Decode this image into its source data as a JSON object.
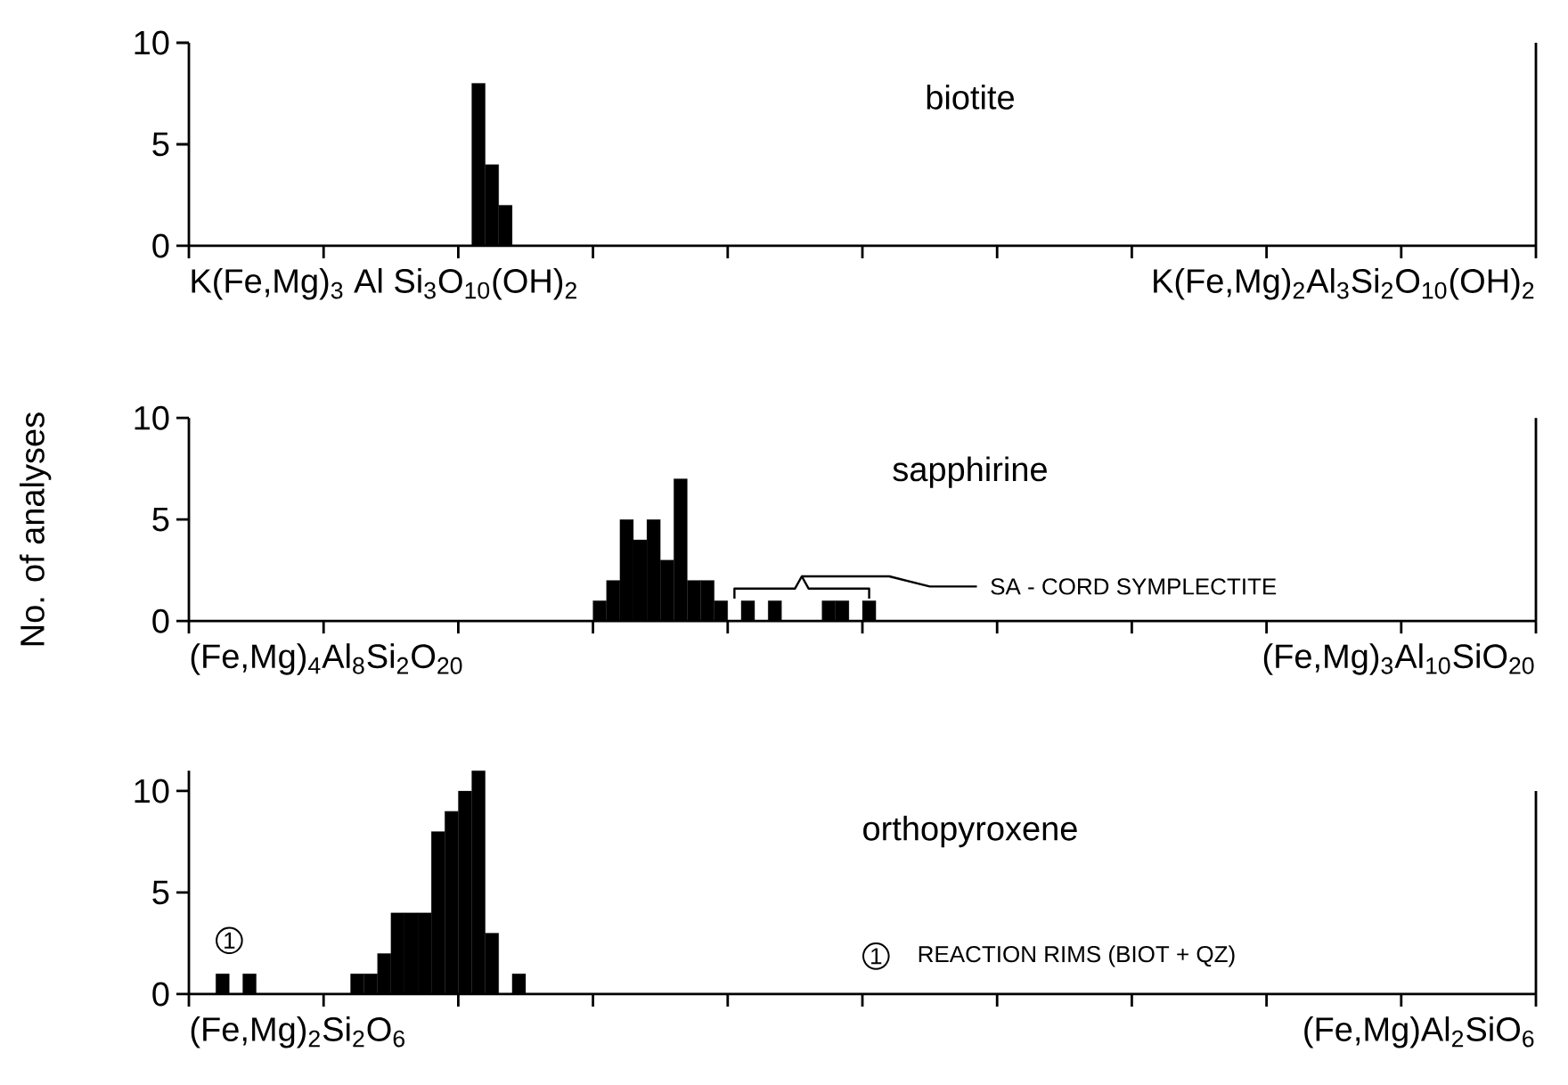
{
  "chart_data": [
    {
      "type": "bar",
      "title": "biotite",
      "color": "#000000",
      "categories": [
        null,
        null,
        null,
        null,
        null,
        null,
        null,
        null,
        null,
        null,
        null,
        null,
        null,
        null,
        null,
        null,
        null,
        null,
        null,
        null,
        null,
        null,
        null,
        null,
        null,
        null,
        null,
        null,
        null,
        null,
        null,
        null,
        null,
        null,
        null,
        null,
        null,
        null,
        null,
        null,
        null,
        null,
        null,
        null,
        null,
        null,
        null,
        null,
        null,
        null,
        null,
        null,
        null,
        null,
        null,
        null,
        null,
        null,
        null,
        null,
        null,
        null,
        null,
        null,
        null,
        null,
        null,
        null,
        null,
        null,
        null,
        null,
        null,
        null,
        null,
        null,
        null,
        null,
        null,
        null,
        null,
        null,
        null,
        null,
        null,
        null,
        null,
        null,
        null,
        null,
        null,
        null,
        null,
        null,
        null,
        null,
        null,
        null,
        null,
        null
      ],
      "values": [
        0,
        0,
        0,
        0,
        0,
        0,
        0,
        0,
        0,
        0,
        0,
        0,
        0,
        0,
        0,
        0,
        0,
        0,
        0,
        0,
        0,
        8,
        4,
        2,
        0,
        0,
        0,
        0,
        0,
        0,
        0,
        0,
        0,
        0,
        0,
        0,
        0,
        0,
        0,
        0,
        0,
        0,
        0,
        0,
        0,
        0,
        0,
        0,
        0,
        0,
        0,
        0,
        0,
        0,
        0,
        0,
        0,
        0,
        0,
        0,
        0,
        0,
        0,
        0,
        0,
        0,
        0,
        0,
        0,
        0,
        0,
        0,
        0,
        0,
        0,
        0,
        0,
        0,
        0,
        0,
        0,
        0,
        0,
        0,
        0,
        0,
        0,
        0,
        0,
        0,
        0,
        0,
        0,
        0,
        0,
        0,
        0,
        0,
        0,
        0
      ],
      "ylim": [
        0,
        10
      ],
      "yticks": [
        0,
        5,
        10
      ],
      "annotations": [
        "K(Fe,Mg)$_{3}$ Al Si$_{3}$O$_{10}$(OH)$_{2}$",
        "K(Fe,Mg)$_{2}$Al$_{3}$Si$_{2}$O$_{10}$(OH)$_{2}$"
      ]
    },
    {
      "type": "bar",
      "title": "sapphirine",
      "ylabel": "No. of analyses",
      "color": "#000000",
      "categories": [
        null,
        null,
        null,
        null,
        null,
        null,
        null,
        null,
        null,
        null,
        null,
        null,
        null,
        null,
        null,
        null,
        null,
        null,
        null,
        null,
        null,
        null,
        null,
        null,
        null,
        null,
        null,
        null,
        null,
        null,
        null,
        null,
        null,
        null,
        null,
        null,
        null,
        null,
        null,
        null,
        null,
        null,
        null,
        null,
        null,
        null,
        null,
        null,
        null,
        null,
        null,
        null,
        null,
        null,
        null,
        null,
        null,
        null,
        null,
        null,
        null,
        null,
        null,
        null,
        null,
        null,
        null,
        null,
        null,
        null,
        null,
        null,
        null,
        null,
        null,
        null,
        null,
        null,
        null,
        null,
        null,
        null,
        null,
        null,
        null,
        null,
        null,
        null,
        null,
        null,
        null,
        null,
        null,
        null,
        null,
        null,
        null,
        null,
        null,
        null
      ],
      "values": [
        0,
        0,
        0,
        0,
        0,
        0,
        0,
        0,
        0,
        0,
        0,
        0,
        0,
        0,
        0,
        0,
        0,
        0,
        0,
        0,
        0,
        0,
        0,
        0,
        0,
        0,
        0,
        0,
        0,
        0,
        1,
        2,
        5,
        4,
        5,
        3,
        7,
        2,
        2,
        1,
        0,
        1,
        0,
        1,
        0,
        0,
        0,
        1,
        1,
        0,
        1,
        0,
        0,
        0,
        0,
        0,
        0,
        0,
        0,
        0,
        0,
        0,
        0,
        0,
        0,
        0,
        0,
        0,
        0,
        0,
        0,
        0,
        0,
        0,
        0,
        0,
        0,
        0,
        0,
        0,
        0,
        0,
        0,
        0,
        0,
        0,
        0,
        0,
        0,
        0,
        0,
        0,
        0,
        0,
        0,
        0,
        0,
        0,
        0,
        0
      ],
      "ylim": [
        0,
        10
      ],
      "yticks": [
        0,
        5,
        10
      ],
      "annotations": [
        "(Fe,Mg)$_{4}$Al$_{8}$Si$_{2}$O$_{20}$",
        "(Fe,Mg)$_{3}$Al$_{10}$SiO$_{20}$",
        "SA - CORD SYMPLECTITE"
      ]
    },
    {
      "type": "bar",
      "title": "orthopyroxene",
      "color": "#000000",
      "categories": [
        null,
        null,
        null,
        null,
        null,
        null,
        null,
        null,
        null,
        null,
        null,
        null,
        null,
        null,
        null,
        null,
        null,
        null,
        null,
        null,
        null,
        null,
        null,
        null,
        null,
        null,
        null,
        null,
        null,
        null,
        null,
        null,
        null,
        null,
        null,
        null,
        null,
        null,
        null,
        null,
        null,
        null,
        null,
        null,
        null,
        null,
        null,
        null,
        null,
        null,
        null,
        null,
        null,
        null,
        null,
        null,
        null,
        null,
        null,
        null,
        null,
        null,
        null,
        null,
        null,
        null,
        null,
        null,
        null,
        null,
        null,
        null,
        null,
        null,
        null,
        null,
        null,
        null,
        null,
        null,
        null,
        null,
        null,
        null,
        null,
        null,
        null,
        null,
        null,
        null,
        null,
        null,
        null,
        null,
        null,
        null,
        null,
        null,
        null,
        null
      ],
      "values": [
        0,
        0,
        1,
        0,
        1,
        0,
        0,
        0,
        0,
        0,
        0,
        0,
        1,
        1,
        2,
        4,
        4,
        4,
        8,
        9,
        10,
        11,
        3,
        0,
        1,
        0,
        0,
        0,
        0,
        0,
        0,
        0,
        0,
        0,
        0,
        0,
        0,
        0,
        0,
        0,
        0,
        0,
        0,
        0,
        0,
        0,
        0,
        0,
        0,
        0,
        0,
        0,
        0,
        0,
        0,
        0,
        0,
        0,
        0,
        0,
        0,
        0,
        0,
        0,
        0,
        0,
        0,
        0,
        0,
        0,
        0,
        0,
        0,
        0,
        0,
        0,
        0,
        0,
        0,
        0,
        0,
        0,
        0,
        0,
        0,
        0,
        0,
        0,
        0,
        0,
        0,
        0,
        0,
        0,
        0,
        0,
        0,
        0,
        0,
        0
      ],
      "ylim": [
        0,
        11
      ],
      "yticks": [
        0,
        5,
        10
      ],
      "annotations": [
        "(Fe,Mg)$_{2}$Si$_{2}$O$_{6}$",
        "(Fe,Mg)Al$_{2}$SiO$_{6}$",
        "1",
        "1",
        "REACTION RIMS (BIOT + QZ)"
      ]
    }
  ]
}
